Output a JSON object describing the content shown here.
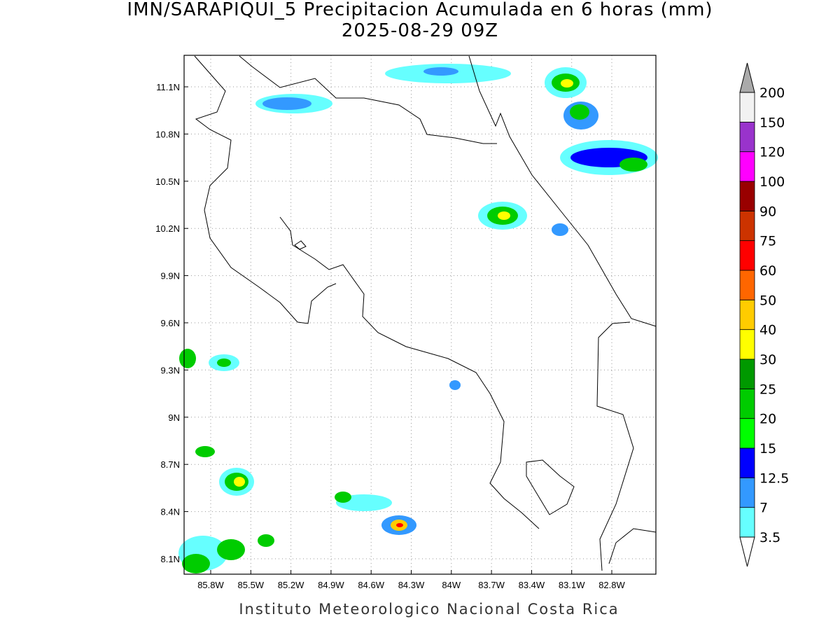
{
  "title": "IMN/SARAPIQUI_5 Precipitacion Acumulada en 6 horas (mm)",
  "subtitle": "2025-08-29 09Z",
  "lat_labels": [
    "11.1N",
    "10.8N",
    "10.5N",
    "10.2N",
    "9.9N",
    "9.6N",
    "9.3N",
    "9N",
    "8.7N",
    "8.4N",
    "8.1N"
  ],
  "lon_labels": [
    "85.8W",
    "85.5W",
    "85.2W",
    "84.9W",
    "84.6W",
    "84.3W",
    "84W",
    "83.7W",
    "83.4W",
    "83.1W",
    "82.8W"
  ],
  "colorbar": {
    "levels": [
      3.5,
      7,
      12.5,
      15,
      20,
      25,
      30,
      40,
      50,
      60,
      75,
      90,
      100,
      120,
      150,
      200
    ],
    "colors": [
      "#66ffff",
      "#3399ff",
      "#0000ff",
      "#00ff00",
      "#00cc00",
      "#009900",
      "#ffff00",
      "#ffcc00",
      "#ff6600",
      "#ff0000",
      "#cc3300",
      "#990000",
      "#ff00ff",
      "#9933cc",
      "#f2f2f2"
    ],
    "over_color": "#aaaaaa",
    "under_color": "#ffffff"
  },
  "footer": "Instituto Meteorologico Nacional Costa Rica"
}
